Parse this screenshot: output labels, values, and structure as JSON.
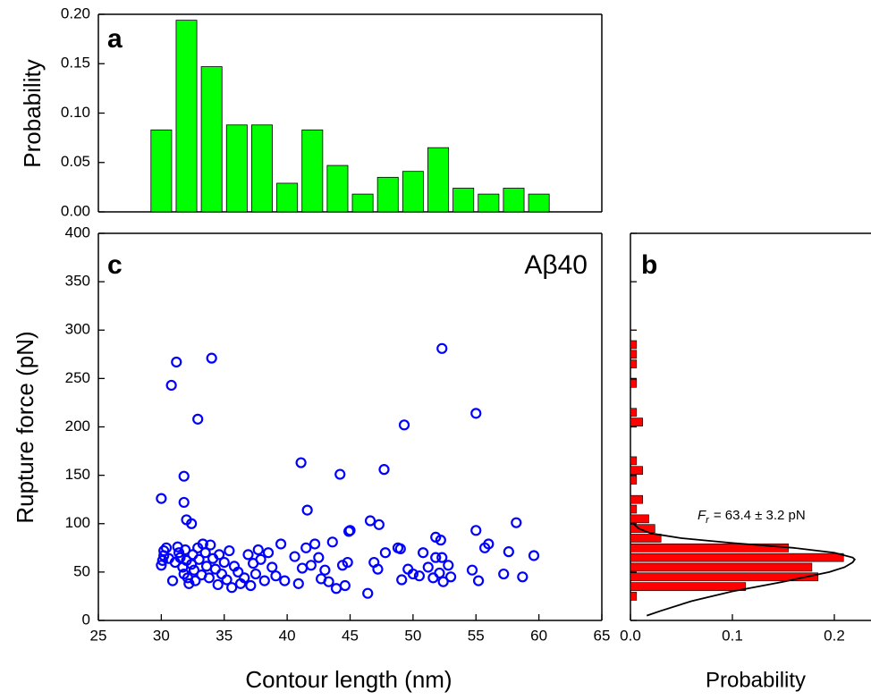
{
  "chart_data": [
    {
      "type": "histogram",
      "panel_label": "a",
      "ylabel": "Probability",
      "color": "#00ff00",
      "bins": [
        29,
        31,
        33,
        35,
        37,
        39,
        41,
        43,
        45,
        47,
        49,
        51,
        53,
        55,
        57,
        59,
        61
      ],
      "values": [
        0.083,
        0.194,
        0.147,
        0.088,
        0.088,
        0.029,
        0.083,
        0.047,
        0.018,
        0.035,
        0.041,
        0.065,
        0.024,
        0.018,
        0.024,
        0.018
      ],
      "xlim": [
        25,
        65
      ],
      "ylim": [
        0,
        0.2
      ],
      "yticks": [
        {
          "value": 0,
          "label": "0.00"
        },
        0.05,
        {
          "value": 0.1,
          "label": "0.10"
        },
        0.15,
        {
          "value": 0.2,
          "label": "0.20"
        }
      ]
    },
    {
      "type": "scatter",
      "panel_label": "c",
      "annotation": "Aβ40",
      "xlabel": "Contour length (nm)",
      "ylabel": "Rupture force (pN)",
      "color": "#0000ff",
      "xlim": [
        25,
        65
      ],
      "ylim": [
        0,
        400
      ],
      "xticks": [
        25,
        30,
        35,
        40,
        45,
        50,
        55,
        60,
        65
      ],
      "yticks": [
        0,
        50,
        100,
        150,
        200,
        250,
        300,
        350,
        400
      ],
      "x": [
        30.0,
        30.1,
        30.2,
        30.2,
        30.4,
        30.6,
        30.9,
        31.1,
        31.3,
        31.4,
        31.5,
        31.7,
        31.8,
        31.9,
        32.0,
        32.1,
        32.2,
        32.4,
        32.5,
        32.6,
        32.7,
        32.9,
        33.0,
        33.2,
        33.3,
        33.5,
        33.6,
        33.8,
        33.9,
        34.1,
        34.3,
        34.5,
        34.6,
        34.8,
        35.0,
        35.2,
        35.4,
        35.6,
        35.8,
        36.1,
        36.3,
        36.6,
        36.9,
        37.1,
        37.3,
        37.5,
        37.7,
        37.9,
        38.2,
        38.5,
        38.8,
        39.1,
        39.5,
        39.8,
        40.6,
        40.9,
        41.2,
        41.5,
        41.9,
        42.2,
        42.5,
        42.7,
        43.0,
        43.3,
        43.6,
        43.9,
        44.4,
        44.6,
        44.8,
        45.0,
        46.4,
        46.9,
        47.2,
        47.8,
        48.8,
        49.1,
        49.6,
        50.0,
        50.5,
        50.8,
        51.2,
        51.6,
        51.8,
        52.1,
        52.4,
        52.8,
        53.0,
        54.7,
        55.2,
        57.2,
        58.7,
        30.0,
        30.8,
        31.2,
        31.8,
        31.8,
        32.0,
        32.4,
        32.9,
        34.0,
        41.1,
        41.6,
        44.2,
        47.7,
        49.3,
        52.3,
        55.0,
        46.6,
        47.3,
        55.0,
        58.2,
        44.9,
        51.8,
        52.2,
        56.0,
        55.7,
        57.6,
        59.6,
        52.3,
        49.0
      ],
      "y": [
        57,
        62,
        67,
        72,
        75,
        64,
        41,
        60,
        76,
        70,
        65,
        55,
        48,
        73,
        62,
        44,
        38,
        58,
        68,
        52,
        41,
        75,
        63,
        47,
        79,
        70,
        56,
        44,
        78,
        64,
        53,
        37,
        68,
        48,
        60,
        42,
        72,
        34,
        56,
        50,
        38,
        44,
        68,
        36,
        59,
        48,
        73,
        63,
        41,
        70,
        55,
        46,
        79,
        41,
        66,
        38,
        54,
        75,
        57,
        79,
        65,
        43,
        52,
        40,
        81,
        33,
        57,
        36,
        60,
        93,
        28,
        60,
        53,
        70,
        75,
        42,
        53,
        48,
        46,
        70,
        55,
        44,
        65,
        49,
        40,
        57,
        45,
        52,
        41,
        48,
        45,
        126,
        243,
        267,
        149,
        122,
        104,
        100,
        208,
        271,
        163,
        114,
        151,
        156,
        202,
        281,
        214,
        103,
        99,
        93,
        101,
        92,
        86,
        83,
        79,
        75,
        71,
        67,
        65,
        74
      ]
    },
    {
      "type": "histogram",
      "orientation": "horizontal",
      "panel_label": "b",
      "xlabel": "Probability",
      "color": "#ff0000",
      "bins": [
        20,
        30,
        40,
        50,
        60,
        70,
        80,
        90,
        100,
        110,
        120,
        130,
        140,
        150,
        160,
        170,
        180,
        190,
        200,
        210,
        220,
        230,
        240,
        250,
        260,
        270,
        280,
        290
      ],
      "values": [
        0.006,
        0.113,
        0.184,
        0.178,
        0.209,
        0.155,
        0.03,
        0.024,
        0.018,
        0.006,
        0.012,
        0,
        0.006,
        0.012,
        0.006,
        0,
        0,
        0,
        0.012,
        0.006,
        0,
        0,
        0.006,
        0,
        0.006,
        0.006,
        0.006
      ],
      "xlim": [
        0,
        0.236
      ],
      "ylim": [
        0,
        400
      ],
      "xticks": [
        {
          "value": 0,
          "label": "0.0"
        },
        0.1,
        0.2
      ],
      "yticks": [
        0,
        50,
        100,
        150,
        200,
        250,
        300,
        350,
        400
      ],
      "fit": {
        "color": "#000000",
        "force": [
          5,
          10,
          20,
          30,
          40,
          50,
          55,
          60,
          63,
          65,
          70,
          75,
          80,
          85,
          90,
          95,
          100
        ],
        "probability": [
          0.016,
          0.03,
          0.06,
          0.1,
          0.15,
          0.195,
          0.21,
          0.218,
          0.22,
          0.218,
          0.2,
          0.16,
          0.1,
          0.05,
          0.02,
          0.008,
          0.003
        ],
        "label": {
          "symbol": "F",
          "subscript": "r",
          "text": "= 63.4 ± 3.2 pN"
        }
      }
    }
  ]
}
